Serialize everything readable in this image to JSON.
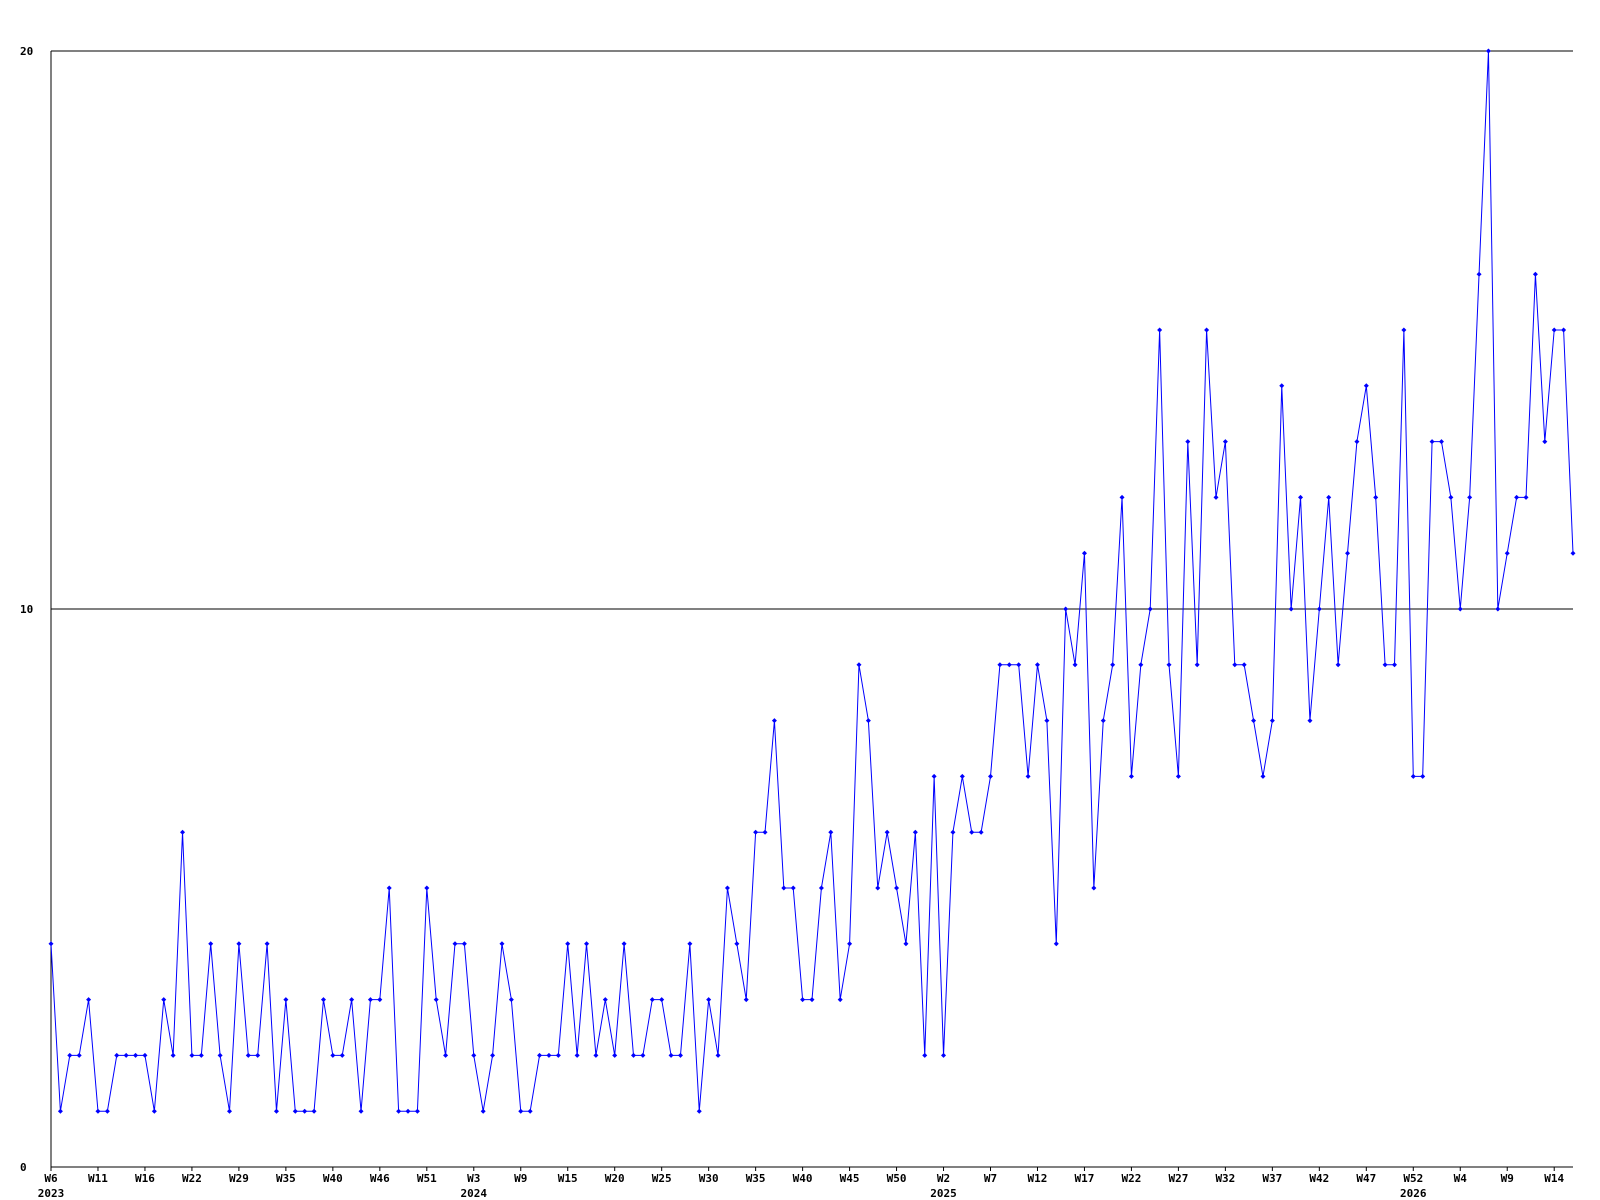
{
  "chart_data": {
    "type": "line",
    "categories": [
      "W6\n2023",
      null,
      null,
      null,
      null,
      "W11",
      null,
      null,
      null,
      null,
      "W16",
      null,
      null,
      null,
      null,
      "W22",
      null,
      null,
      null,
      null,
      "W29",
      null,
      null,
      null,
      null,
      "W35",
      null,
      null,
      null,
      null,
      "W40",
      null,
      null,
      null,
      null,
      "W46",
      null,
      null,
      null,
      null,
      "W51",
      null,
      null,
      null,
      null,
      "W3\n2024",
      null,
      null,
      null,
      null,
      "W9",
      null,
      null,
      null,
      null,
      "W15",
      null,
      null,
      null,
      null,
      "W20",
      null,
      null,
      null,
      null,
      "W25",
      null,
      null,
      null,
      null,
      "W30",
      null,
      null,
      null,
      null,
      "W35",
      null,
      null,
      null,
      null,
      "W40",
      null,
      null,
      null,
      null,
      "W45",
      null,
      null,
      null,
      null,
      "W50",
      null,
      null,
      null,
      null,
      "W2\n2025",
      null,
      null,
      null,
      null,
      "W7",
      null,
      null,
      null,
      null,
      "W12",
      null,
      null,
      null,
      null,
      "W17",
      null,
      null,
      null,
      null,
      "W22",
      null,
      null,
      null,
      null,
      "W27",
      null,
      null,
      null,
      null,
      "W32",
      null,
      null,
      null,
      null,
      "W37",
      null,
      null,
      null,
      null,
      "W42",
      null,
      null,
      null,
      null,
      "W47",
      null,
      null,
      null,
      null,
      "W52\n2026",
      null,
      null,
      null,
      null,
      "W4",
      null,
      null,
      null,
      null,
      "W9",
      null,
      null,
      null,
      null,
      "W14",
      null,
      null
    ],
    "series": [
      {
        "color": "#0000ff",
        "values": [
          4,
          1,
          2,
          2,
          3,
          1,
          1,
          2,
          2,
          2,
          2,
          1,
          3,
          2,
          6,
          2,
          2,
          4,
          2,
          1,
          4,
          2,
          2,
          4,
          1,
          3,
          1,
          1,
          1,
          3,
          2,
          2,
          3,
          1,
          3,
          3,
          5,
          1,
          1,
          1,
          5,
          3,
          2,
          4,
          4,
          2,
          1,
          2,
          4,
          3,
          1,
          1,
          2,
          2,
          2,
          4,
          2,
          4,
          2,
          3,
          2,
          4,
          2,
          2,
          3,
          3,
          2,
          2,
          4,
          1,
          3,
          2,
          5,
          4,
          3,
          6,
          6,
          8,
          5,
          5,
          3,
          3,
          5,
          6,
          3,
          4,
          9,
          8,
          5,
          6,
          5,
          4,
          6,
          2,
          7,
          2,
          6,
          7,
          6,
          6,
          7,
          9,
          9,
          9,
          7,
          9,
          8,
          4,
          10,
          9,
          11,
          5,
          8,
          9,
          12,
          7,
          9,
          10,
          15,
          9,
          7,
          13,
          9,
          15,
          12,
          13,
          9,
          9,
          8,
          7,
          8,
          14,
          10,
          12,
          8,
          10,
          12,
          9,
          11,
          13,
          14,
          12,
          9,
          9,
          15,
          7,
          7,
          13,
          13,
          12,
          10,
          12,
          16,
          20,
          10,
          11,
          12,
          12,
          16,
          13,
          15,
          15,
          11
        ]
      }
    ],
    "ylim": [
      0,
      20
    ],
    "yticks": [
      0,
      10,
      20
    ],
    "grid": true
  }
}
